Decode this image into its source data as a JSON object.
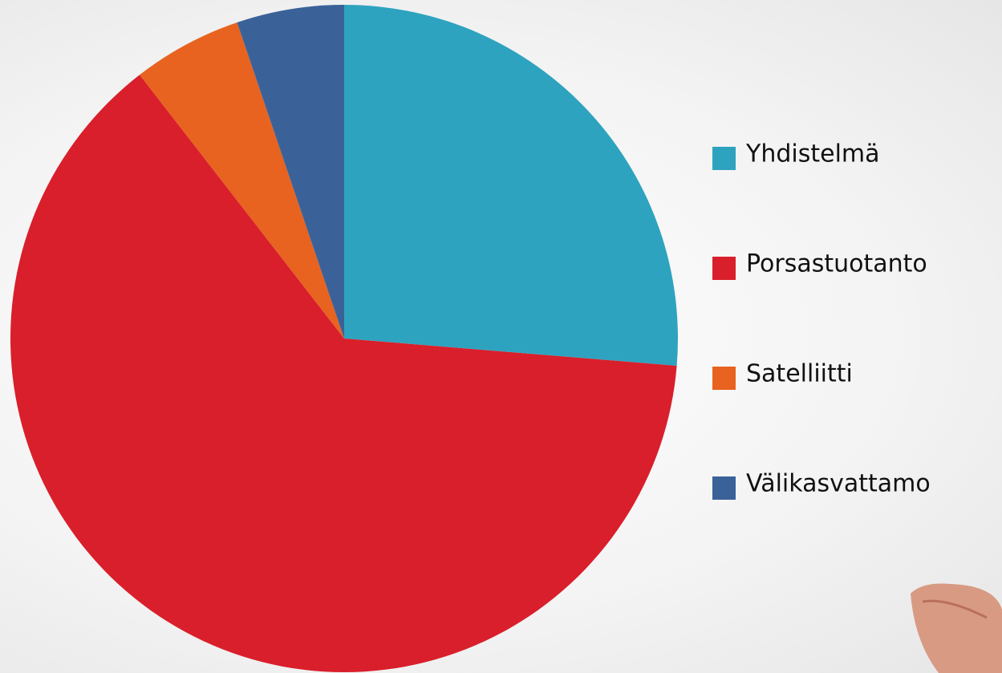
{
  "chart_data": {
    "type": "pie",
    "categories": [
      "Yhdistelmä",
      "Porsastuotanto",
      "Satelliitti",
      "Välikasvattamo"
    ],
    "values": [
      26.3,
      63.2,
      5.3,
      5.2
    ],
    "colors": [
      "#2ea3bf",
      "#d91f2b",
      "#e8631f",
      "#3a6299"
    ],
    "legend": "right"
  }
}
